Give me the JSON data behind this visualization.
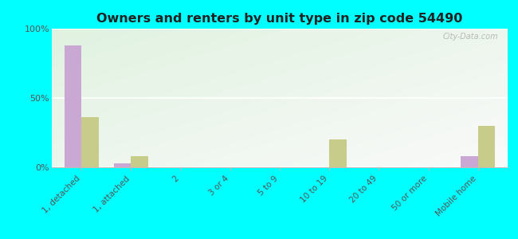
{
  "title": "Owners and renters by unit type in zip code 54490",
  "categories": [
    "1, detached",
    "1, attached",
    "2",
    "3 or 4",
    "5 to 9",
    "10 to 19",
    "20 to 49",
    "50 or more",
    "Mobile home"
  ],
  "owner_values": [
    88,
    3,
    0,
    0,
    0,
    0,
    0,
    0,
    8
  ],
  "renter_values": [
    36,
    8,
    0,
    0,
    0,
    20,
    0,
    0,
    30
  ],
  "owner_color": "#c9a8d4",
  "renter_color": "#c8cc8a",
  "background_color": "#00ffff",
  "ylim": [
    0,
    100
  ],
  "yticks": [
    0,
    50,
    100
  ],
  "ytick_labels": [
    "0%",
    "50%",
    "100%"
  ],
  "bar_width": 0.35,
  "watermark": "City-Data.com",
  "xlim_left": -0.6,
  "xlim_right": 8.6
}
